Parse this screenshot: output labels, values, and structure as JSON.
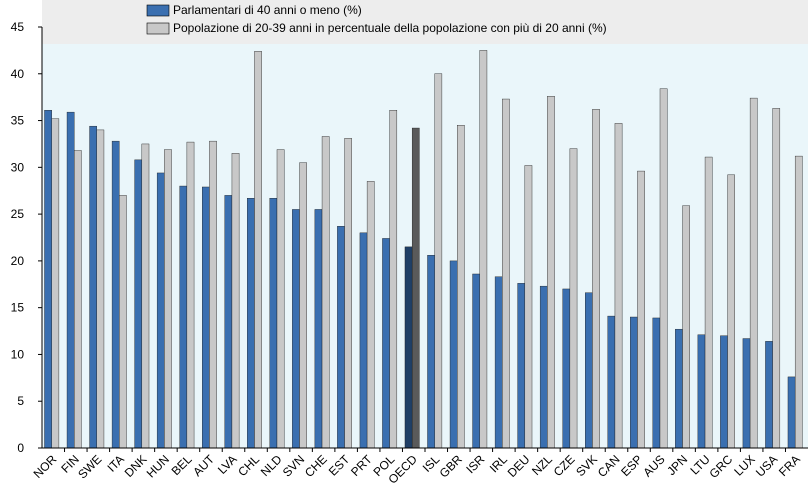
{
  "chart_data": {
    "type": "bar",
    "title": "",
    "xlabel": "",
    "ylabel": "",
    "ylim": [
      0,
      45
    ],
    "yticks": [
      0,
      5,
      10,
      15,
      20,
      25,
      30,
      35,
      40,
      45
    ],
    "grid": false,
    "legend_position": "top",
    "categories": [
      "NOR",
      "FIN",
      "SWE",
      "ITA",
      "DNK",
      "HUN",
      "BEL",
      "AUT",
      "LVA",
      "CHL",
      "NLD",
      "SVN",
      "CHE",
      "EST",
      "PRT",
      "POL",
      "OECD",
      "ISL",
      "GBR",
      "ISR",
      "IRL",
      "DEU",
      "NZL",
      "CZE",
      "SVK",
      "CAN",
      "ESP",
      "AUS",
      "JPN",
      "LTU",
      "GRC",
      "LUX",
      "USA",
      "FRA"
    ],
    "highlight_category": "OECD",
    "series": [
      {
        "name": "Parlamentari di 40 anni o meno (%)",
        "color": "#3A6FB0",
        "highlight_color": "#1F3F66",
        "values": [
          36.1,
          35.9,
          34.4,
          32.8,
          30.8,
          29.4,
          28.0,
          27.9,
          27.0,
          26.7,
          26.7,
          25.5,
          25.5,
          23.7,
          23.0,
          22.4,
          21.5,
          20.6,
          20.0,
          18.6,
          18.3,
          17.6,
          17.3,
          17.0,
          16.6,
          14.1,
          14.0,
          13.9,
          12.7,
          12.1,
          12.0,
          11.7,
          11.4,
          7.6
        ]
      },
      {
        "name": "Popolazione di 20-39 anni in percentuale della popolazione con più di 20 anni (%)",
        "color": "#C8C8C8",
        "highlight_color": "#5A5A5A",
        "values": [
          35.2,
          31.8,
          34.0,
          27.0,
          32.5,
          31.9,
          32.7,
          32.8,
          31.5,
          42.4,
          31.9,
          30.5,
          33.3,
          33.1,
          28.5,
          36.1,
          34.2,
          40.0,
          34.5,
          42.5,
          37.3,
          30.2,
          37.6,
          32.0,
          36.2,
          34.7,
          29.6,
          38.4,
          25.9,
          31.1,
          29.2,
          37.4,
          36.3,
          31.2
        ]
      }
    ]
  }
}
